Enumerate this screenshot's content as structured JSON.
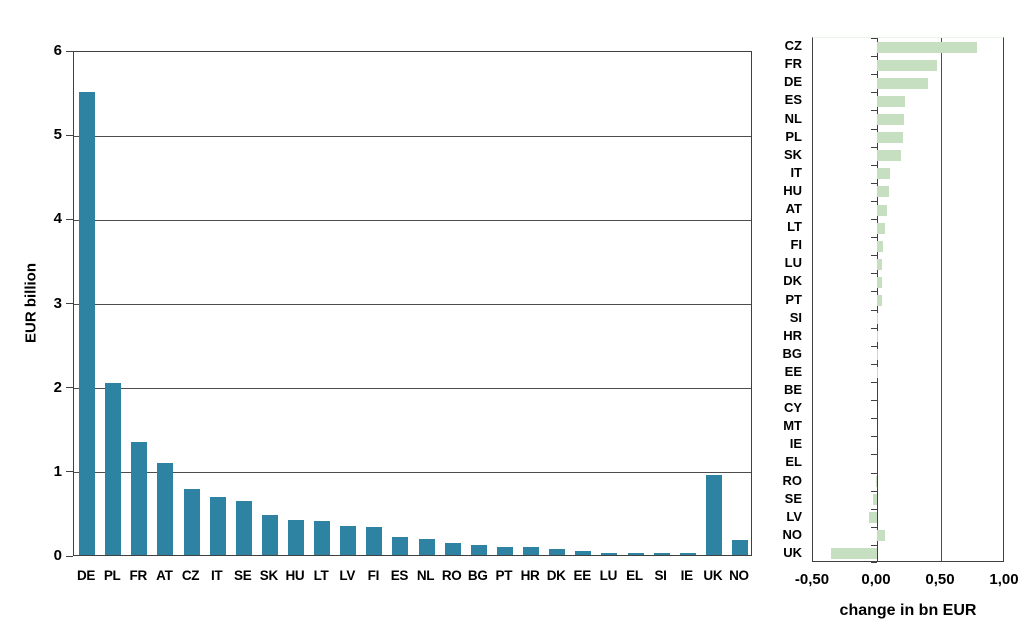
{
  "figure": {
    "background": "#ffffff",
    "line_color": "#404040"
  },
  "chart_data": [
    {
      "type": "bar",
      "title": "",
      "xlabel": "",
      "ylabel": "EUR billion",
      "ylim": [
        0,
        6
      ],
      "ytick_labels": [
        "0",
        "1",
        "2",
        "3",
        "4",
        "5",
        "6"
      ],
      "ytick_values": [
        0,
        1,
        2,
        3,
        4,
        5,
        6
      ],
      "grid": true,
      "legend": "none",
      "bar_color": "#2e83a3",
      "categories": [
        "DE",
        "PL",
        "FR",
        "AT",
        "CZ",
        "IT",
        "SE",
        "SK",
        "HU",
        "LT",
        "LV",
        "FI",
        "ES",
        "NL",
        "RO",
        "BG",
        "PT",
        "HR",
        "DK",
        "EE",
        "LU",
        "EL",
        "SI",
        "IE",
        "UK",
        "NO"
      ],
      "values": [
        5.5,
        2.05,
        1.34,
        1.09,
        0.78,
        0.69,
        0.64,
        0.47,
        0.42,
        0.41,
        0.34,
        0.33,
        0.21,
        0.19,
        0.14,
        0.12,
        0.09,
        0.09,
        0.07,
        0.05,
        0.03,
        0.02,
        0.02,
        0.02,
        0.95,
        0.18
      ]
    },
    {
      "type": "bar",
      "orientation": "horizontal",
      "title": "",
      "xlabel": "change in bn EUR",
      "ylabel": "",
      "xlim": [
        -0.5,
        1.0
      ],
      "xtick_labels": [
        "-0,50",
        "0,00",
        "0,50",
        "1,00"
      ],
      "xtick_values": [
        -0.5,
        0,
        0.5,
        1.0
      ],
      "grid": true,
      "legend": "none",
      "bar_color": "#c6dfc1",
      "categories": [
        "CZ",
        "FR",
        "DE",
        "ES",
        "NL",
        "PL",
        "SK",
        "IT",
        "HU",
        "AT",
        "LT",
        "FI",
        "LU",
        "DK",
        "PT",
        "SI",
        "HR",
        "BG",
        "EE",
        "BE",
        "CY",
        "MT",
        "IE",
        "EL",
        "RO",
        "SE",
        "LV",
        "NO",
        "UK"
      ],
      "values": [
        0.78,
        0.47,
        0.4,
        0.22,
        0.21,
        0.2,
        0.19,
        0.1,
        0.09,
        0.08,
        0.06,
        0.05,
        0.04,
        0.04,
        0.04,
        0.01,
        0.01,
        0.01,
        0.01,
        0.0,
        0.0,
        0.0,
        0.0,
        0.0,
        -0.01,
        -0.03,
        -0.06,
        0.06,
        -0.36
      ]
    }
  ]
}
